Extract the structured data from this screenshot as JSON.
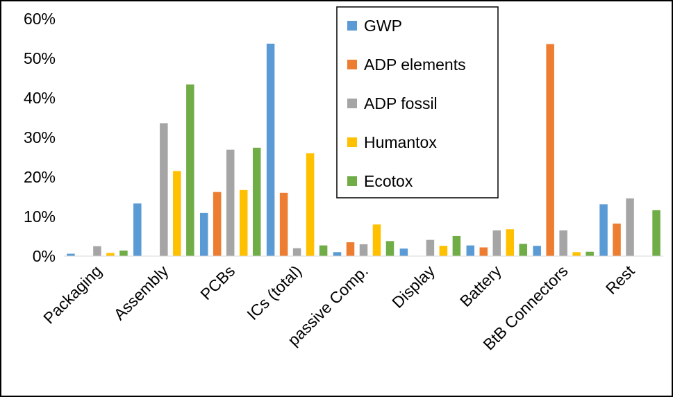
{
  "chart_data": {
    "type": "bar",
    "title": "",
    "xlabel": "",
    "ylabel": "",
    "ylim": [
      0,
      60
    ],
    "y_tick_values": [
      0,
      10,
      20,
      30,
      40,
      50,
      60
    ],
    "y_tick_labels": [
      "0%",
      "10%",
      "20%",
      "30%",
      "40%",
      "50%",
      "60%"
    ],
    "grid": false,
    "legend_position": "top-center",
    "categories": [
      "Packaging",
      "Assembly",
      "PCBs",
      "ICs (total)",
      "passive Comp.",
      "Display",
      "Battery",
      "BtB Connectors",
      "Rest"
    ],
    "series": [
      {
        "name": "GWP",
        "color": "#5B9BD5",
        "values": [
          0.6,
          13.3,
          10.9,
          53.7,
          1.0,
          1.9,
          2.7,
          2.6,
          13.1
        ]
      },
      {
        "name": "ADP elements",
        "color": "#ED7D31",
        "values": [
          0.0,
          0.0,
          16.2,
          16.0,
          3.5,
          0.0,
          2.2,
          53.6,
          8.2
        ]
      },
      {
        "name": "ADP fossil",
        "color": "#A5A5A5",
        "values": [
          2.5,
          33.6,
          26.9,
          2.0,
          3.0,
          4.1,
          6.5,
          6.5,
          14.6
        ]
      },
      {
        "name": "Humantox",
        "color": "#FFC000",
        "values": [
          0.8,
          21.5,
          16.7,
          26.0,
          8.0,
          2.6,
          6.8,
          1.0,
          0.0
        ]
      },
      {
        "name": "Ecotox",
        "color": "#70AD47",
        "values": [
          1.4,
          43.4,
          27.4,
          2.7,
          3.8,
          5.1,
          3.1,
          1.1,
          11.6
        ]
      }
    ]
  }
}
